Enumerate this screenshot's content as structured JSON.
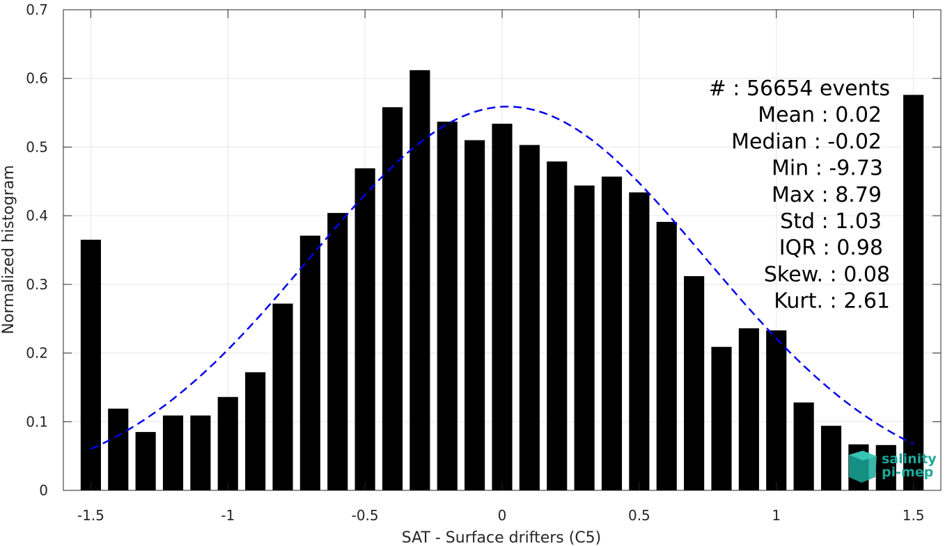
{
  "chart_data": {
    "type": "bar",
    "xlabel": "SAT - Surface drifters (C5)",
    "ylabel": "Normalized histogram",
    "xlim": [
      -1.6,
      1.6
    ],
    "ylim": [
      0,
      0.7
    ],
    "grid": true,
    "x_ticks": [
      -1.5,
      -1,
      -0.5,
      0,
      0.5,
      1,
      1.5
    ],
    "x_tick_labels": [
      "-1.5",
      "-1",
      "-0.5",
      "0",
      "0.5",
      "1",
      "1.5"
    ],
    "y_ticks": [
      0,
      0.1,
      0.2,
      0.3,
      0.4,
      0.5,
      0.6,
      0.7
    ],
    "y_tick_labels": [
      "0",
      "0.1",
      "0.2",
      "0.3",
      "0.4",
      "0.5",
      "0.6",
      "0.7"
    ],
    "bar_color": "#000000",
    "bars": {
      "x": [
        -1.5,
        -1.4,
        -1.3,
        -1.2,
        -1.1,
        -1.0,
        -0.9,
        -0.8,
        -0.7,
        -0.6,
        -0.5,
        -0.4,
        -0.3,
        -0.2,
        -0.1,
        0.0,
        0.1,
        0.2,
        0.3,
        0.4,
        0.5,
        0.6,
        0.7,
        0.8,
        0.9,
        1.0,
        1.1,
        1.2,
        1.3,
        1.4,
        1.5
      ],
      "values": [
        0.365,
        0.119,
        0.085,
        0.109,
        0.109,
        0.136,
        0.172,
        0.272,
        0.371,
        0.404,
        0.469,
        0.558,
        0.612,
        0.537,
        0.51,
        0.534,
        0.503,
        0.479,
        0.444,
        0.457,
        0.434,
        0.391,
        0.312,
        0.209,
        0.236,
        0.233,
        0.128,
        0.094,
        0.067,
        0.066,
        0.576
      ],
      "width": 0.074
    },
    "fit_curve": {
      "kind": "gaussian",
      "style": "dashed",
      "color": "#0000ee",
      "mean": 0.02,
      "std": 0.72,
      "peak": 0.559,
      "x_range": [
        -1.5,
        1.5
      ]
    },
    "stats": [
      {
        "label": "#  : 56654 events",
        "anchor": "1278"
      },
      {
        "label": "Mean : 0.02",
        "anchor": "1266"
      },
      {
        "label": "Median : -0.02",
        "anchor": "1266"
      },
      {
        "label": "Min : -9.73",
        "anchor": "1268"
      },
      {
        "label": "Max : 8.79",
        "anchor": "1266"
      },
      {
        "label": "Std : 1.03",
        "anchor": "1266"
      },
      {
        "label": "IQR : 0.98",
        "anchor": "1268"
      },
      {
        "label": "Skew. : 0.08",
        "anchor": "1278"
      },
      {
        "label": "Kurt. : 2.61",
        "anchor": "1278"
      }
    ]
  },
  "logo": {
    "line1": "salinity",
    "line2": "pi-mep",
    "color": "#1aa89a"
  }
}
